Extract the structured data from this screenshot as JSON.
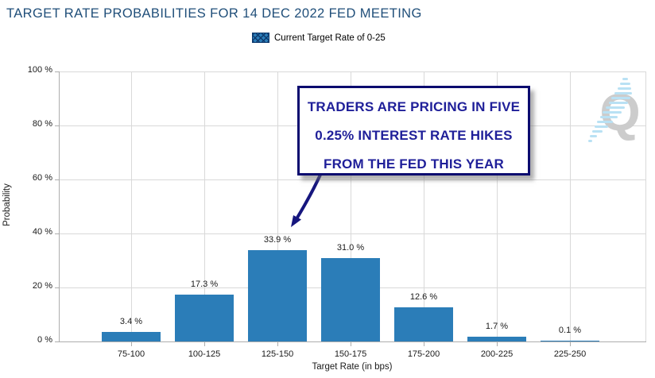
{
  "title": "TARGET RATE PROBABILITIES FOR 14 DEC 2022 FED MEETING",
  "legend": {
    "label": "Current Target Rate of 0-25"
  },
  "annotation": {
    "lines": [
      "TRADERS ARE PRICING IN FIVE",
      "0.25% INTEREST RATE HIKES",
      "FROM THE FED THIS YEAR"
    ],
    "text_color": "#1f1f99",
    "border_color": "#0b0b6f",
    "arrow_color": "#16167e"
  },
  "watermark": {
    "letter": "Q",
    "letter_color": "#cccccc",
    "dash_color": "#b9e1f4"
  },
  "colors": {
    "title": "#1F4E79",
    "bar": "#2B7DB8",
    "gridline": "#d9d9d9",
    "axis": "#adadad"
  },
  "chart_data": {
    "type": "bar",
    "title": "TARGET RATE PROBABILITIES FOR 14 DEC 2022 FED MEETING",
    "legend_entries": [
      "Current Target Rate of 0-25"
    ],
    "legend_position": "top-center",
    "categories": [
      "75-100",
      "100-125",
      "125-150",
      "150-175",
      "175-200",
      "200-225",
      "225-250"
    ],
    "values": [
      3.4,
      17.3,
      33.9,
      31.0,
      12.6,
      1.7,
      0.1
    ],
    "value_labels": [
      "3.4 %",
      "17.3 %",
      "33.9 %",
      "31.0 %",
      "12.6 %",
      "1.7 %",
      "0.1 %"
    ],
    "xlabel": "Target Rate (in bps)",
    "ylabel": "Probability",
    "ylim": [
      0,
      100
    ],
    "yticks": [
      0,
      20,
      40,
      60,
      80,
      100
    ],
    "ytick_labels": [
      "0 %",
      "20 %",
      "40 %",
      "60 %",
      "80 %",
      "100 %"
    ],
    "grid": true,
    "bar_color": "#2B7DB8",
    "annotation_text": "TRADERS ARE PRICING IN FIVE 0.25% INTEREST RATE HIKES FROM THE FED THIS YEAR",
    "annotation_target_category": "125-150"
  }
}
